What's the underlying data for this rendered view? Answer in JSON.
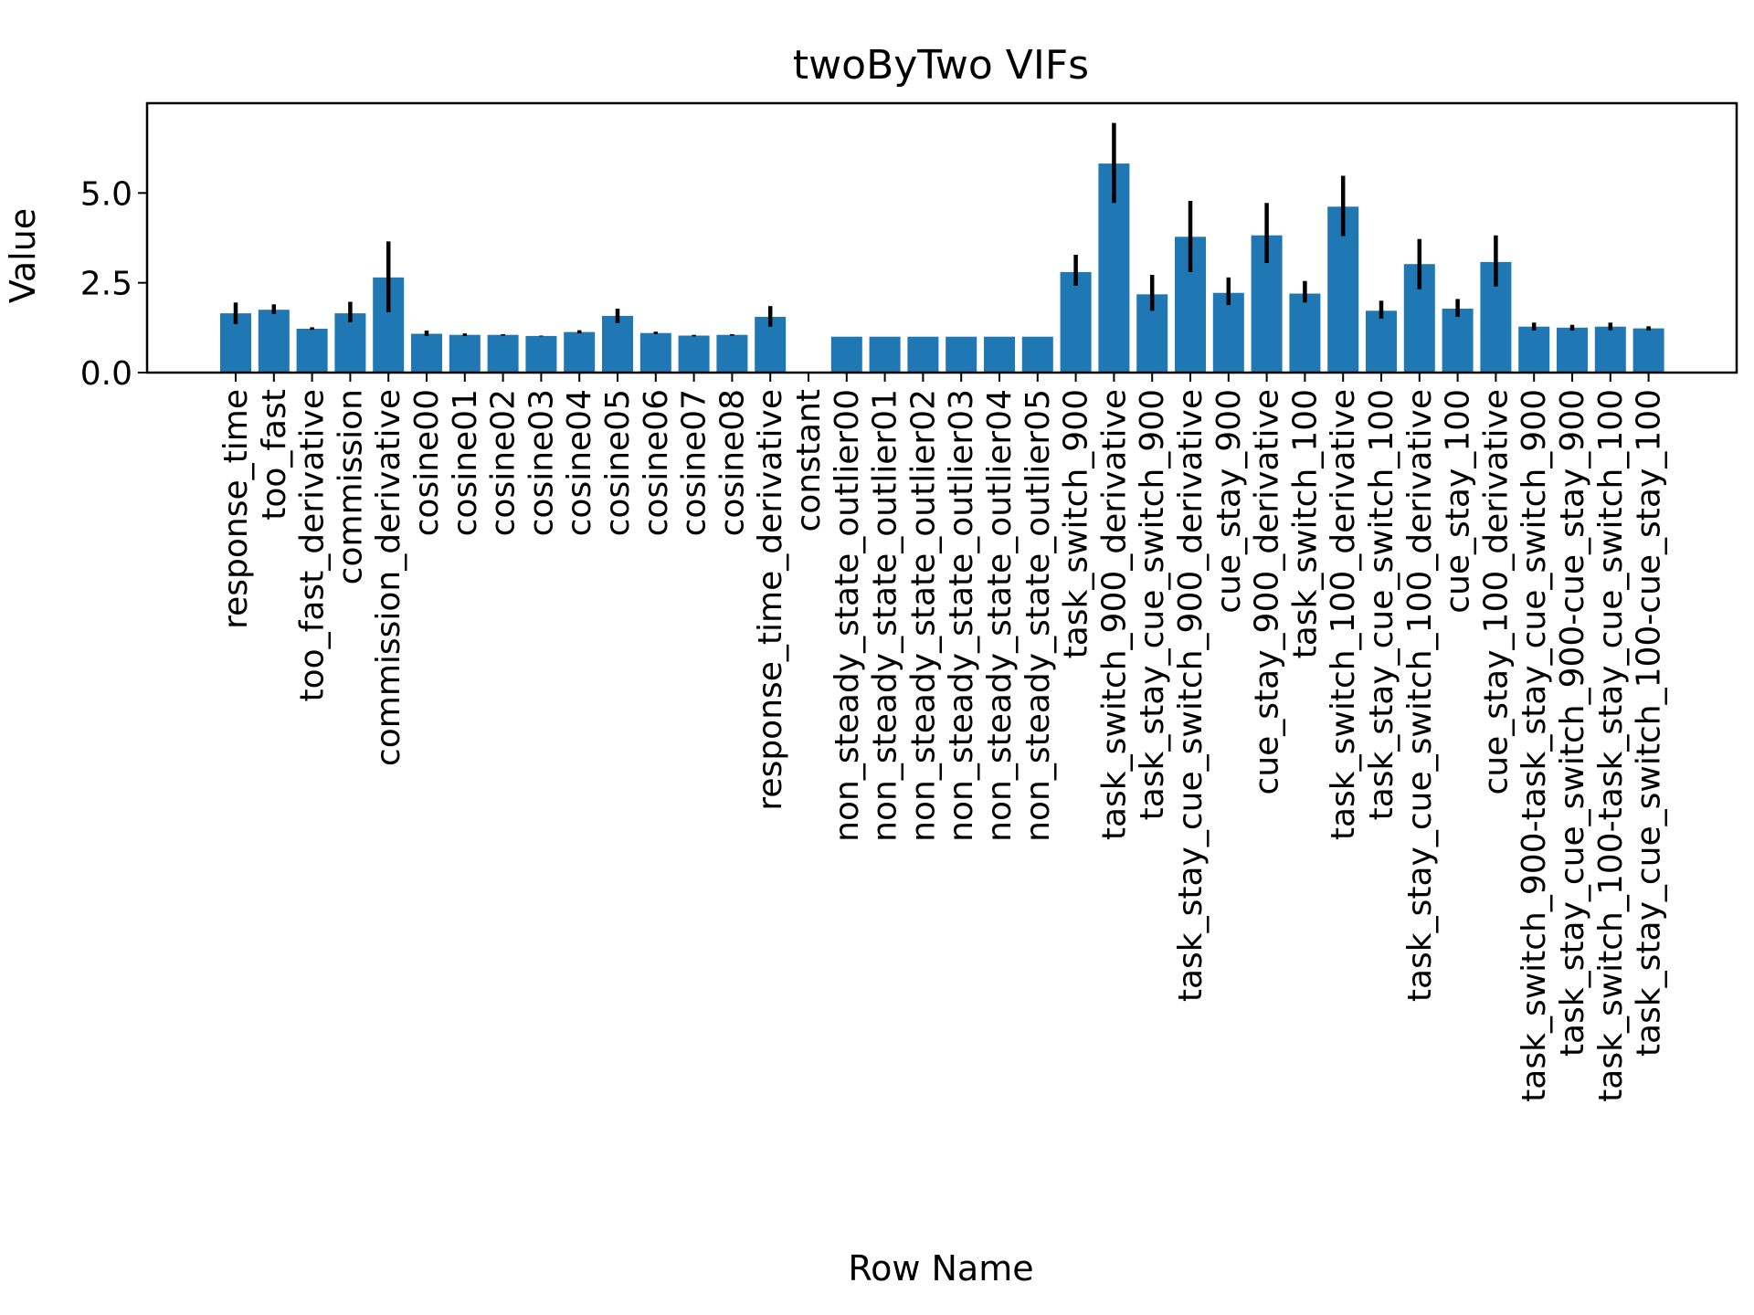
{
  "chart_data": {
    "type": "bar",
    "title": "twoByTwo VIFs",
    "xlabel": "Row Name",
    "ylabel": "Value",
    "ylim": [
      0,
      7.5
    ],
    "yticks": [
      0.0,
      2.5,
      5.0
    ],
    "ytick_labels": [
      "0.0",
      "2.5",
      "5.0"
    ],
    "grid": false,
    "bar_color": "#1f77b4",
    "errorbar_color": "#000000",
    "categories": [
      "response_time",
      "too_fast",
      "too_fast_derivative",
      "commission",
      "commission_derivative",
      "cosine00",
      "cosine01",
      "cosine02",
      "cosine03",
      "cosine04",
      "cosine05",
      "cosine06",
      "cosine07",
      "cosine08",
      "response_time_derivative",
      "constant",
      "non_steady_state_outlier00",
      "non_steady_state_outlier01",
      "non_steady_state_outlier02",
      "non_steady_state_outlier03",
      "non_steady_state_outlier04",
      "non_steady_state_outlier05",
      "task_switch_900",
      "task_switch_900_derivative",
      "task_stay_cue_switch_900",
      "task_stay_cue_switch_900_derivative",
      "cue_stay_900",
      "cue_stay_900_derivative",
      "task_switch_100",
      "task_switch_100_derivative",
      "task_stay_cue_switch_100",
      "task_stay_cue_switch_100_derivative",
      "cue_stay_100",
      "cue_stay_100_derivative",
      "task_switch_900-task_stay_cue_switch_900",
      "task_stay_cue_switch_900-cue_stay_900",
      "task_switch_100-task_stay_cue_switch_100",
      "task_stay_cue_switch_100-cue_stay_100"
    ],
    "values": [
      1.65,
      1.75,
      1.22,
      1.65,
      2.65,
      1.08,
      1.05,
      1.05,
      1.02,
      1.13,
      1.58,
      1.1,
      1.03,
      1.05,
      1.55,
      null,
      1.0,
      1.0,
      1.0,
      1.0,
      1.0,
      1.0,
      2.8,
      5.82,
      2.18,
      3.78,
      2.22,
      3.82,
      2.2,
      4.62,
      1.72,
      3.02,
      1.78,
      3.08,
      1.28,
      1.25,
      1.28,
      1.23
    ],
    "error_low": [
      1.35,
      1.63,
      1.19,
      1.4,
      1.68,
      1.02,
      1.02,
      1.03,
      1.01,
      1.09,
      1.38,
      1.07,
      1.01,
      1.03,
      1.28,
      null,
      1.0,
      1.0,
      1.0,
      1.0,
      1.0,
      1.0,
      2.42,
      4.72,
      1.72,
      2.8,
      1.88,
      3.05,
      1.95,
      3.8,
      1.5,
      2.32,
      1.55,
      2.4,
      1.17,
      1.17,
      1.18,
      1.17
    ],
    "error_high": [
      1.95,
      1.9,
      1.26,
      1.97,
      3.65,
      1.17,
      1.09,
      1.07,
      1.03,
      1.18,
      1.78,
      1.14,
      1.05,
      1.07,
      1.85,
      null,
      1.0,
      1.0,
      1.0,
      1.0,
      1.0,
      1.0,
      3.28,
      6.95,
      2.72,
      4.78,
      2.65,
      4.72,
      2.55,
      5.48,
      2.0,
      3.72,
      2.05,
      3.82,
      1.39,
      1.33,
      1.39,
      1.29
    ]
  }
}
